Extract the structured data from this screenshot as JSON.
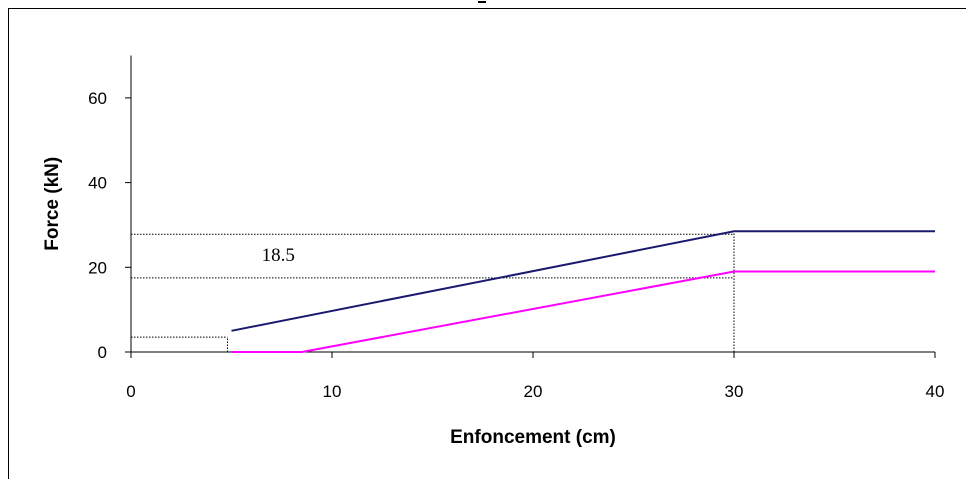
{
  "chart_data": {
    "type": "line",
    "title": "",
    "xlabel": "Enfoncement (cm)",
    "ylabel": "Force (kN)",
    "xlim": [
      0,
      40
    ],
    "ylim": [
      0,
      70
    ],
    "x_ticks": [
      0,
      10,
      20,
      30,
      40
    ],
    "y_ticks": [
      0,
      20,
      40,
      60
    ],
    "grid": false,
    "legend": "none",
    "series": [
      {
        "color": "#1a1a6e",
        "points": [
          [
            5,
            5
          ],
          [
            30,
            28.5
          ],
          [
            40,
            28.5
          ]
        ]
      },
      {
        "color": "#ff00ff",
        "points": [
          [
            5,
            0
          ],
          [
            8.5,
            0
          ],
          [
            30,
            19
          ],
          [
            40,
            19
          ]
        ]
      }
    ],
    "reference_lines": [
      {
        "axis": "y",
        "value": 3.5,
        "to_x": 4.8
      },
      {
        "axis": "y",
        "value": 27.8,
        "to_x": 30
      },
      {
        "axis": "y",
        "value": 17.5,
        "to_x": 30
      },
      {
        "axis": "x",
        "value": 4.8,
        "to_y": 3.5
      },
      {
        "axis": "x",
        "value": 30,
        "to_y": 28.5
      }
    ],
    "annotations": [
      {
        "text": "18.5",
        "x": 6.5,
        "y": 21.5
      }
    ]
  }
}
